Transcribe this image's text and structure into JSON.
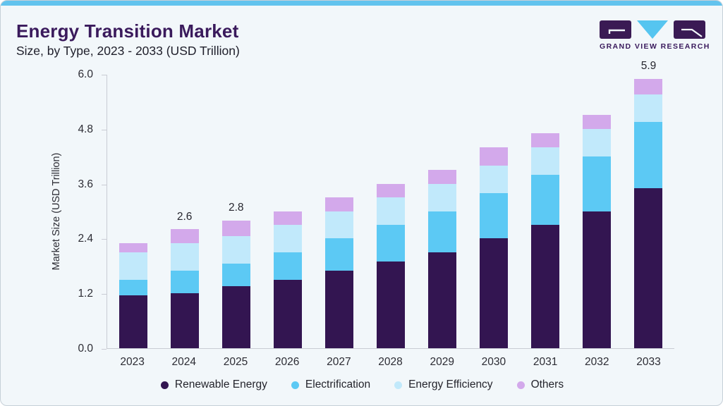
{
  "page": {
    "title": "Energy Transition Market",
    "subtitle": "Size, by Type, 2023 - 2033 (USD Trillion)"
  },
  "brand": {
    "name": "GRAND VIEW RESEARCH"
  },
  "colors": {
    "accent_bar": "#62c3ee",
    "card_background": "#f2f7fa",
    "title_text": "#3a1a5c",
    "axis_text": "#2c2c34",
    "renewable_energy": "#331551",
    "electrification": "#5cc9f4",
    "energy_efficiency": "#c1e9fb",
    "others": "#d3a9eb"
  },
  "chart_data": {
    "type": "bar",
    "stacked": true,
    "title": "Energy Transition Market",
    "subtitle": "Size, by Type, 2023 - 2033 (USD Trillion)",
    "xlabel": "",
    "ylabel": "Market Size (USD Trillion)",
    "ylim": [
      0,
      6.0
    ],
    "yticks": [
      "6.0",
      "4.8",
      "3.6",
      "2.4",
      "1.2",
      "0.0"
    ],
    "grid": false,
    "legend_position": "bottom",
    "categories": [
      "2023",
      "2024",
      "2025",
      "2026",
      "2027",
      "2028",
      "2029",
      "2030",
      "2031",
      "2032",
      "2033"
    ],
    "series": [
      {
        "name": "Renewable Energy",
        "color": "#331551",
        "values": [
          1.15,
          1.2,
          1.35,
          1.5,
          1.7,
          1.9,
          2.1,
          2.4,
          2.7,
          3.0,
          3.5
        ]
      },
      {
        "name": "Electrification",
        "color": "#5cc9f4",
        "values": [
          0.35,
          0.5,
          0.5,
          0.6,
          0.7,
          0.8,
          0.9,
          1.0,
          1.1,
          1.2,
          1.45
        ]
      },
      {
        "name": "Energy Efficiency",
        "color": "#c1e9fb",
        "values": [
          0.6,
          0.6,
          0.6,
          0.6,
          0.6,
          0.6,
          0.6,
          0.6,
          0.6,
          0.6,
          0.6
        ]
      },
      {
        "name": "Others",
        "color": "#d3a9eb",
        "values": [
          0.2,
          0.3,
          0.35,
          0.3,
          0.3,
          0.3,
          0.3,
          0.4,
          0.3,
          0.3,
          0.35
        ]
      }
    ],
    "bar_total_labels": {
      "2024": "2.6",
      "2025": "2.8",
      "2033": "5.9"
    }
  }
}
